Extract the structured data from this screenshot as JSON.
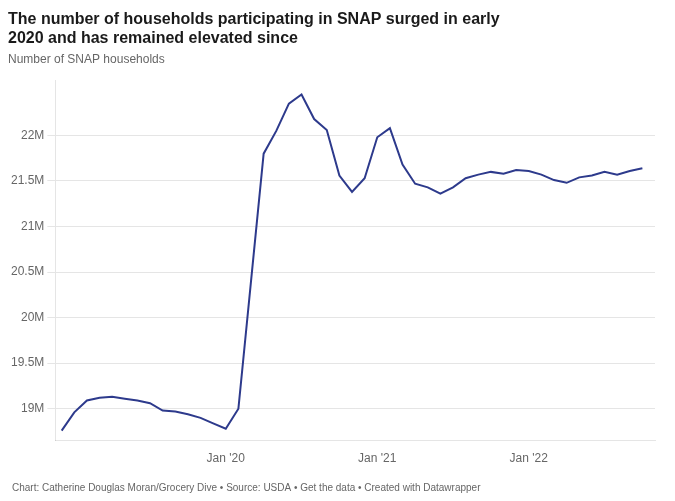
{
  "chart_data": {
    "type": "line",
    "title": [
      "The number of households participating in SNAP surged in early",
      "2020 and has remained elevated since"
    ],
    "subtitle": "Number of SNAP households",
    "footer": "Chart: Catherine Douglas Moran/Grocery Dive • Source: USDA • Get the data • Created with Datawrapper",
    "color": "#2d3a8c",
    "x": [
      0,
      1,
      2,
      3,
      4,
      5,
      6,
      7,
      8,
      9,
      10,
      11,
      12,
      13,
      14,
      15,
      16,
      17,
      18,
      19,
      20,
      21,
      22,
      23,
      24,
      25,
      26,
      27,
      28,
      29,
      30,
      31,
      32,
      33,
      34,
      35,
      36,
      37,
      38,
      39,
      40,
      41,
      42,
      43,
      44,
      45,
      46
    ],
    "values": [
      18760000,
      18960000,
      19090000,
      19120000,
      19130000,
      19110000,
      19090000,
      19060000,
      18980000,
      18970000,
      18940000,
      18900000,
      18840000,
      18780000,
      19000000,
      20400000,
      21800000,
      22050000,
      22350000,
      22450000,
      22180000,
      22060000,
      21560000,
      21380000,
      21530000,
      21980000,
      22080000,
      21680000,
      21470000,
      21430000,
      21360000,
      21430000,
      21530000,
      21570000,
      21600000,
      21580000,
      21620000,
      21610000,
      21570000,
      21510000,
      21480000,
      21540000,
      21560000,
      21600000,
      21570000,
      21610000,
      21640000
    ],
    "xlim": [
      -0.5,
      47
    ],
    "xticks": [
      {
        "value": 13,
        "label": "Jan '20"
      },
      {
        "value": 25,
        "label": "Jan '21"
      },
      {
        "value": 37,
        "label": "Jan '22"
      }
    ],
    "ylim": [
      18650000,
      22600000
    ],
    "yticks": [
      {
        "value": 19000000,
        "label": "19M"
      },
      {
        "value": 19500000,
        "label": "19.5M"
      },
      {
        "value": 20000000,
        "label": "20M"
      },
      {
        "value": 20500000,
        "label": "20.5M"
      },
      {
        "value": 21000000,
        "label": "21M"
      },
      {
        "value": 21500000,
        "label": "21.5M"
      },
      {
        "value": 22000000,
        "label": "22M"
      }
    ],
    "grid": true
  }
}
